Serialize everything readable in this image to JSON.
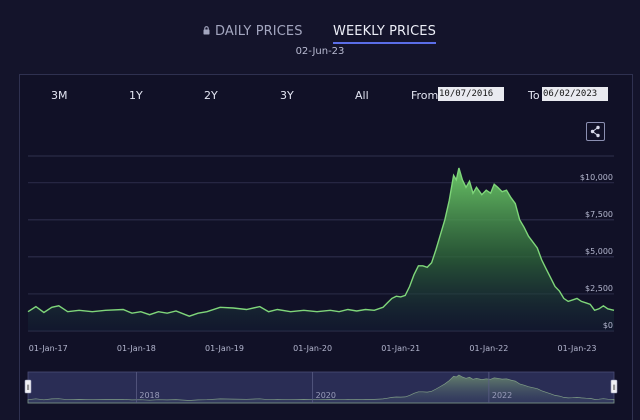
{
  "tabs": {
    "daily_label": "DAILY PRICES",
    "weekly_label": "WEEKLY PRICES"
  },
  "toolbar": {
    "ranges": [
      "3M",
      "1Y",
      "2Y",
      "3Y",
      "All"
    ],
    "from_label": "From",
    "from_value": "10/07/2016",
    "to_label": "To",
    "to_value": "06/02/2023"
  },
  "chart_data": {
    "type": "area",
    "title": "02-Jun-23",
    "xlabel": "",
    "ylabel": "",
    "ylim": [
      0,
      11000
    ],
    "y_ticks": [
      {
        "value": 0,
        "label": "$0"
      },
      {
        "value": 2500,
        "label": "$2,500"
      },
      {
        "value": 5000,
        "label": "$5,000"
      },
      {
        "value": 7500,
        "label": "$7,500"
      },
      {
        "value": 10000,
        "label": "$10,000"
      }
    ],
    "x_ticks": [
      {
        "year": 2017.0,
        "label": "01-Jan-17"
      },
      {
        "year": 2018.0,
        "label": "01-Jan-18"
      },
      {
        "year": 2019.0,
        "label": "01-Jan-19"
      },
      {
        "year": 2020.0,
        "label": "01-Jan-20"
      },
      {
        "year": 2021.0,
        "label": "01-Jan-21"
      },
      {
        "year": 2022.0,
        "label": "01-Jan-22"
      },
      {
        "year": 2023.0,
        "label": "01-Jan-23"
      }
    ],
    "x_range": [
      2016.77,
      2023.42
    ],
    "grid": true,
    "series": [
      {
        "name": "Weekly price",
        "color": "#7fd67a",
        "points": [
          [
            2016.77,
            1300
          ],
          [
            2016.86,
            1650
          ],
          [
            2016.95,
            1250
          ],
          [
            2017.04,
            1600
          ],
          [
            2017.12,
            1700
          ],
          [
            2017.22,
            1300
          ],
          [
            2017.35,
            1400
          ],
          [
            2017.5,
            1300
          ],
          [
            2017.65,
            1400
          ],
          [
            2017.85,
            1450
          ],
          [
            2017.95,
            1200
          ],
          [
            2018.05,
            1300
          ],
          [
            2018.15,
            1100
          ],
          [
            2018.25,
            1300
          ],
          [
            2018.35,
            1200
          ],
          [
            2018.45,
            1350
          ],
          [
            2018.6,
            1000
          ],
          [
            2018.7,
            1200
          ],
          [
            2018.8,
            1300
          ],
          [
            2018.95,
            1600
          ],
          [
            2019.1,
            1550
          ],
          [
            2019.25,
            1450
          ],
          [
            2019.4,
            1650
          ],
          [
            2019.5,
            1300
          ],
          [
            2019.6,
            1450
          ],
          [
            2019.75,
            1300
          ],
          [
            2019.9,
            1400
          ],
          [
            2020.05,
            1300
          ],
          [
            2020.2,
            1400
          ],
          [
            2020.3,
            1300
          ],
          [
            2020.4,
            1450
          ],
          [
            2020.5,
            1350
          ],
          [
            2020.6,
            1450
          ],
          [
            2020.7,
            1400
          ],
          [
            2020.8,
            1600
          ],
          [
            2020.85,
            1900
          ],
          [
            2020.9,
            2200
          ],
          [
            2020.95,
            2350
          ],
          [
            2021.0,
            2300
          ],
          [
            2021.05,
            2400
          ],
          [
            2021.1,
            3000
          ],
          [
            2021.15,
            3800
          ],
          [
            2021.2,
            4400
          ],
          [
            2021.25,
            4400
          ],
          [
            2021.3,
            4300
          ],
          [
            2021.35,
            4600
          ],
          [
            2021.4,
            5500
          ],
          [
            2021.45,
            6500
          ],
          [
            2021.5,
            7500
          ],
          [
            2021.55,
            8800
          ],
          [
            2021.6,
            10500
          ],
          [
            2021.63,
            10200
          ],
          [
            2021.66,
            11000
          ],
          [
            2021.7,
            10200
          ],
          [
            2021.74,
            9700
          ],
          [
            2021.78,
            10100
          ],
          [
            2021.82,
            9300
          ],
          [
            2021.86,
            9700
          ],
          [
            2021.92,
            9200
          ],
          [
            2021.97,
            9500
          ],
          [
            2022.02,
            9300
          ],
          [
            2022.06,
            9900
          ],
          [
            2022.1,
            9700
          ],
          [
            2022.15,
            9400
          ],
          [
            2022.2,
            9500
          ],
          [
            2022.25,
            9000
          ],
          [
            2022.3,
            8600
          ],
          [
            2022.35,
            7500
          ],
          [
            2022.4,
            7000
          ],
          [
            2022.45,
            6400
          ],
          [
            2022.5,
            6000
          ],
          [
            2022.55,
            5600
          ],
          [
            2022.6,
            4800
          ],
          [
            2022.65,
            4200
          ],
          [
            2022.7,
            3600
          ],
          [
            2022.75,
            3000
          ],
          [
            2022.8,
            2700
          ],
          [
            2022.85,
            2200
          ],
          [
            2022.9,
            2000
          ],
          [
            2022.95,
            2100
          ],
          [
            2023.0,
            2200
          ],
          [
            2023.05,
            2000
          ],
          [
            2023.1,
            1900
          ],
          [
            2023.15,
            1800
          ],
          [
            2023.2,
            1400
          ],
          [
            2023.25,
            1500
          ],
          [
            2023.3,
            1700
          ],
          [
            2023.35,
            1500
          ],
          [
            2023.42,
            1400
          ]
        ]
      }
    ]
  },
  "navigator": {
    "year_labels": [
      {
        "year": 2018.0,
        "label": "2018"
      },
      {
        "year": 2020.0,
        "label": "2020"
      },
      {
        "year": 2022.0,
        "label": "2022"
      }
    ],
    "grip_label": "⦀"
  }
}
